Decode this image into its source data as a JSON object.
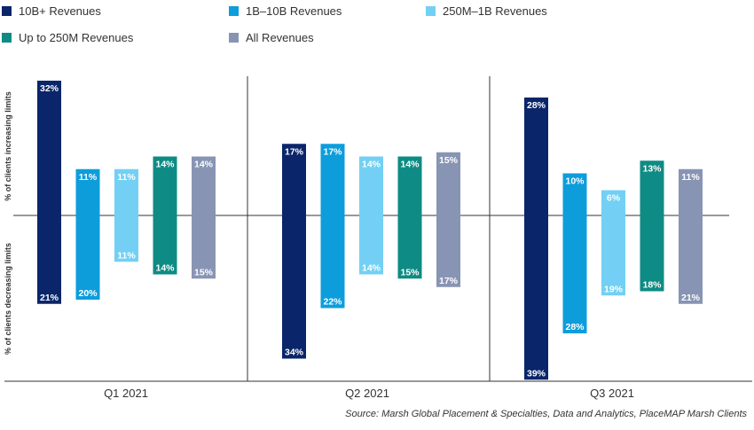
{
  "chart_data": {
    "type": "bar",
    "categories": [
      "Q1 2021",
      "Q2 2021",
      "Q3 2021"
    ],
    "series": [
      {
        "name": "10B+ Revenues",
        "color": "#0a2569",
        "increasing": [
          32,
          17,
          28
        ],
        "decreasing": [
          21,
          34,
          39
        ]
      },
      {
        "name": "1B–10B Revenues",
        "color": "#0d9ddb",
        "increasing": [
          11,
          17,
          10
        ],
        "decreasing": [
          20,
          22,
          28
        ]
      },
      {
        "name": "250M–1B Revenues",
        "color": "#73d0f4",
        "increasing": [
          11,
          14,
          6
        ],
        "decreasing": [
          11,
          14,
          19
        ]
      },
      {
        "name": "Up to 250M Revenues",
        "color": "#0e8b84",
        "increasing": [
          14,
          14,
          13
        ],
        "decreasing": [
          14,
          15,
          18
        ]
      },
      {
        "name": "All Revenues",
        "color": "#8894b3",
        "increasing": [
          14,
          15,
          11
        ],
        "decreasing": [
          15,
          17,
          21
        ]
      }
    ],
    "value_suffix": "%",
    "ylabel_increasing": "% of clients increasing limits",
    "ylabel_decreasing": "% of clients decreasing limits",
    "legend_position": "top",
    "grid": false
  },
  "source_note": "Source: Marsh Global Placement & Specialties, Data and Analytics, PlaceMAP Marsh Clients"
}
